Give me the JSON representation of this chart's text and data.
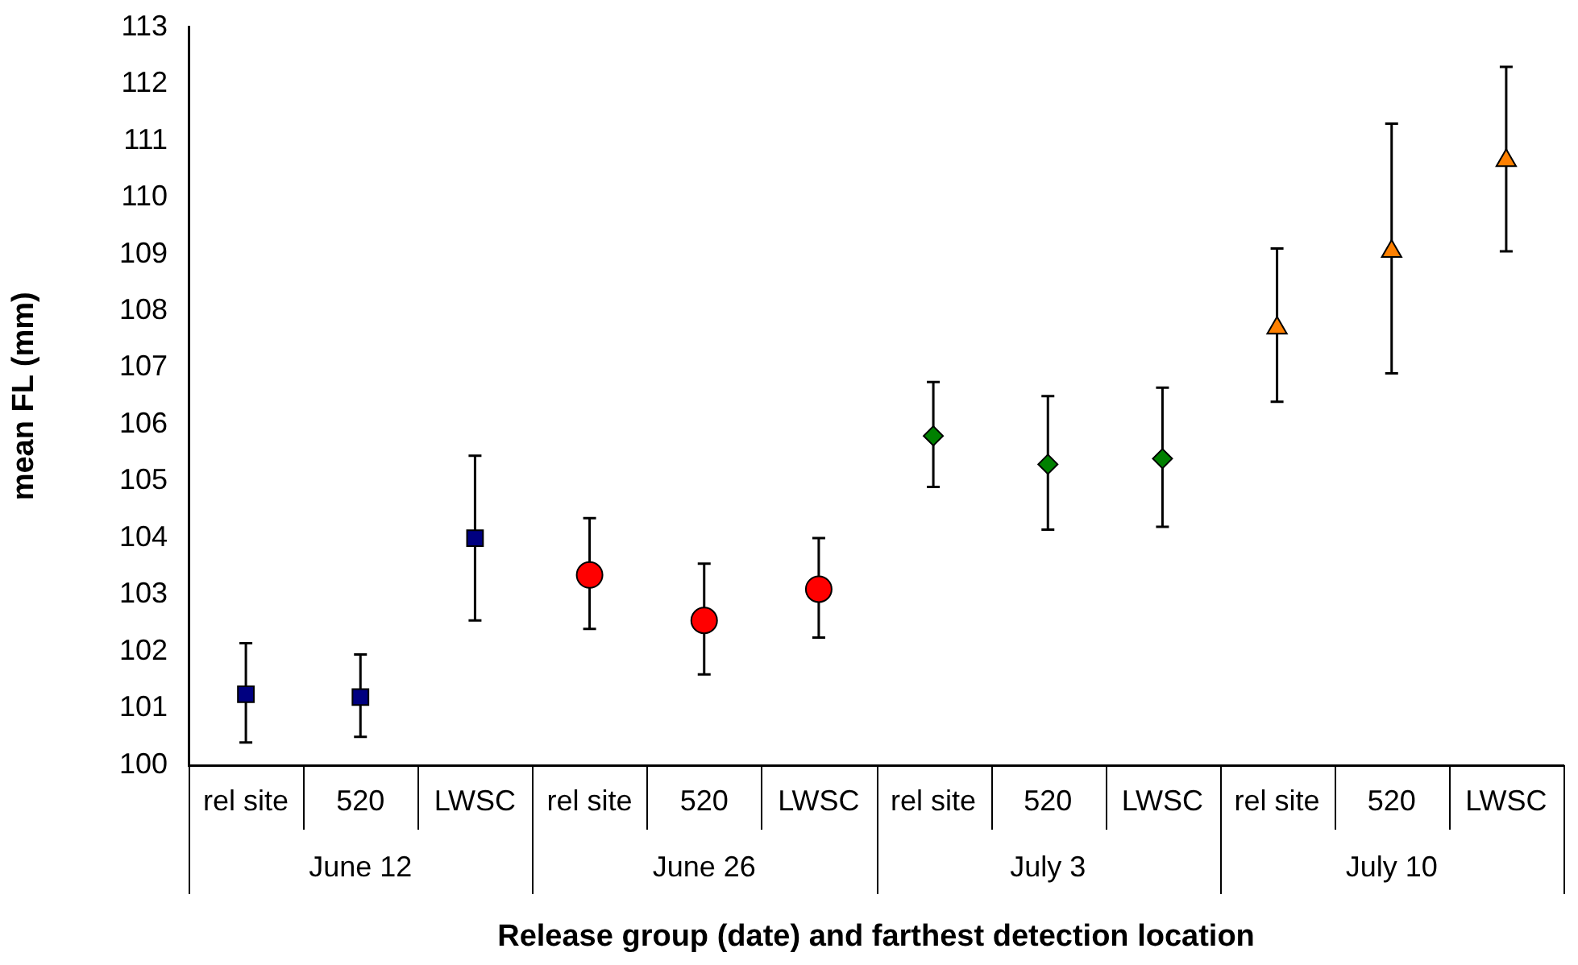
{
  "chart_data": {
    "type": "scatter",
    "xlabel": "Release group (date) and farthest detection location",
    "ylabel": "mean FL (mm)",
    "categories": [
      "rel site",
      "520",
      "LWSC",
      "rel site",
      "520",
      "LWSC",
      "rel site",
      "520",
      "LWSC",
      "rel site",
      "520",
      "LWSC"
    ],
    "series": [
      {
        "name": "June 12",
        "color": "#000080",
        "marker": "square",
        "values": [
          101.25,
          101.2,
          104.0,
          null,
          null,
          null,
          null,
          null,
          null,
          null,
          null,
          null
        ],
        "errors": [
          [
            100.4,
            102.15
          ],
          [
            100.5,
            101.95
          ],
          [
            102.55,
            105.45
          ],
          null,
          null,
          null,
          null,
          null,
          null,
          null,
          null,
          null
        ]
      },
      {
        "name": "June 26",
        "color": "#ff0000",
        "marker": "circle",
        "values": [
          null,
          null,
          null,
          103.35,
          102.55,
          103.1,
          null,
          null,
          null,
          null,
          null,
          null
        ],
        "errors": [
          null,
          null,
          null,
          [
            102.4,
            104.35
          ],
          [
            101.6,
            103.55
          ],
          [
            102.25,
            104.0
          ],
          null,
          null,
          null,
          null,
          null,
          null
        ]
      },
      {
        "name": "July 3",
        "color": "#008000",
        "marker": "diamond",
        "values": [
          null,
          null,
          null,
          null,
          null,
          null,
          105.8,
          105.3,
          105.4,
          null,
          null,
          null
        ],
        "errors": [
          null,
          null,
          null,
          null,
          null,
          null,
          [
            104.9,
            106.75
          ],
          [
            104.15,
            106.5
          ],
          [
            104.2,
            106.65
          ],
          null,
          null,
          null
        ]
      },
      {
        "name": "July 10",
        "color": "#ff8000",
        "marker": "triangle",
        "values": [
          null,
          null,
          null,
          null,
          null,
          null,
          null,
          null,
          null,
          107.7,
          109.05,
          110.65
        ],
        "errors": [
          null,
          null,
          null,
          null,
          null,
          null,
          null,
          null,
          null,
          [
            106.4,
            109.1
          ],
          [
            106.9,
            111.3
          ],
          [
            109.05,
            112.3
          ]
        ]
      }
    ],
    "ylim": [
      100,
      113
    ],
    "yticks": [
      100,
      101,
      102,
      103,
      104,
      105,
      106,
      107,
      108,
      109,
      110,
      111,
      112,
      113
    ],
    "grid": false,
    "legend": "bottom"
  }
}
